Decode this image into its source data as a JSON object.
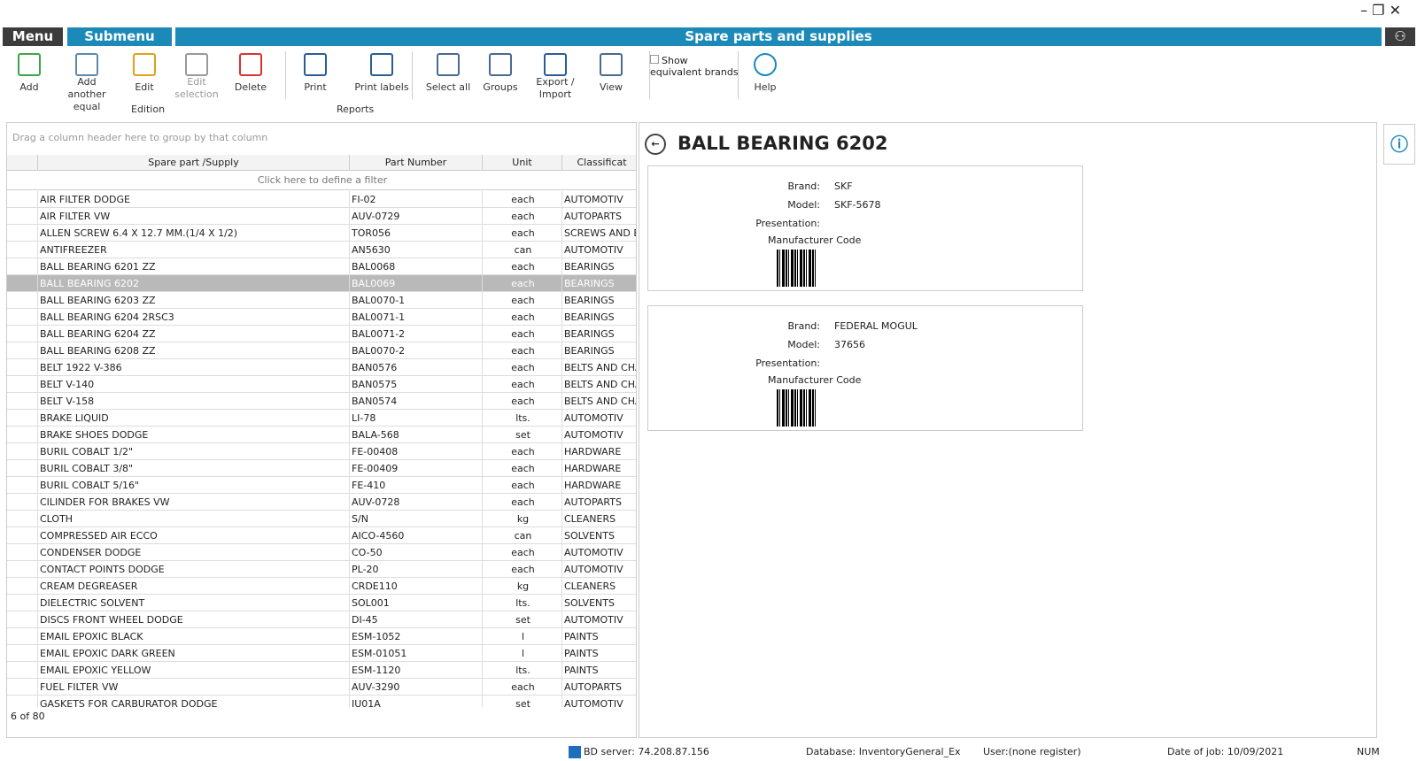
{
  "window": {
    "menu": "Menu",
    "submenu": "Submenu",
    "title": "Spare parts and supplies"
  },
  "toolbar": {
    "buttons": [
      {
        "label": "Add"
      },
      {
        "label": "Add another equal"
      },
      {
        "label": "Edit"
      },
      {
        "label": "Edit selection"
      },
      {
        "label": "Delete"
      },
      {
        "label": "Print"
      },
      {
        "label": "Print labels"
      },
      {
        "label": "Select all"
      },
      {
        "label": "Groups"
      },
      {
        "label": "Export / Import"
      },
      {
        "label": "View"
      },
      {
        "label": "Help"
      }
    ],
    "groups": [
      "Edition",
      "Reports"
    ],
    "checkbox": "Show equivalent brands"
  },
  "grid": {
    "group_hint": "Drag a column header here to group by that column",
    "columns": [
      "Spare part /Supply",
      "Part Number",
      "Unit",
      "Classificat"
    ],
    "filter_hint": "Click here to define a filter",
    "selected_row": 5,
    "rows": [
      [
        "AIR FILTER DODGE",
        "FI-02",
        "each",
        "AUTOMOTIV"
      ],
      [
        "AIR FILTER VW",
        "AUV-0729",
        "each",
        "AUTOPARTS"
      ],
      [
        "ALLEN SCREW 6.4 X 12.7 MM.(1/4 X 1/2)",
        "TOR056",
        "each",
        "SCREWS AND BO"
      ],
      [
        "ANTIFREEZER",
        "AN5630",
        "can",
        "AUTOMOTIV"
      ],
      [
        "BALL BEARING 6201 ZZ",
        "BAL0068",
        "each",
        "BEARINGS"
      ],
      [
        "BALL BEARING 6202",
        "BAL0069",
        "each",
        "BEARINGS"
      ],
      [
        "BALL BEARING 6203 ZZ",
        "BAL0070-1",
        "each",
        "BEARINGS"
      ],
      [
        "BALL BEARING 6204 2RSC3",
        "BAL0071-1",
        "each",
        "BEARINGS"
      ],
      [
        "BALL BEARING 6204 ZZ",
        "BAL0071-2",
        "each",
        "BEARINGS"
      ],
      [
        "BALL BEARING 6208 ZZ",
        "BAL0070-2",
        "each",
        "BEARINGS"
      ],
      [
        "BELT 1922 V-386",
        "BAN0576",
        "each",
        "BELTS AND CHAIN"
      ],
      [
        "BELT V-140",
        "BAN0575",
        "each",
        "BELTS AND CHAIN"
      ],
      [
        "BELT V-158",
        "BAN0574",
        "each",
        "BELTS AND CHAIN"
      ],
      [
        "BRAKE LIQUID",
        "LI-78",
        "lts.",
        "AUTOMOTIV"
      ],
      [
        "BRAKE SHOES DODGE",
        "BALA-568",
        "set",
        "AUTOMOTIV"
      ],
      [
        "BURIL COBALT 1/2\"",
        "FE-00408",
        "each",
        "HARDWARE"
      ],
      [
        "BURIL COBALT 3/8\"",
        "FE-00409",
        "each",
        "HARDWARE"
      ],
      [
        "BURIL COBALT 5/16\"",
        "FE-410",
        "each",
        "HARDWARE"
      ],
      [
        "CILINDER FOR BRAKES VW",
        "AUV-0728",
        "each",
        "AUTOPARTS"
      ],
      [
        "CLOTH",
        "S/N",
        "kg",
        "CLEANERS"
      ],
      [
        "COMPRESSED AIR ECCO",
        "AICO-4560",
        "can",
        "SOLVENTS"
      ],
      [
        "CONDENSER DODGE",
        "CO-50",
        "each",
        "AUTOMOTIV"
      ],
      [
        "CONTACT POINTS DODGE",
        "PL-20",
        "each",
        "AUTOMOTIV"
      ],
      [
        "CREAM DEGREASER",
        "CRDE110",
        "kg",
        "CLEANERS"
      ],
      [
        "DIELECTRIC SOLVENT",
        "SOL001",
        "lts.",
        "SOLVENTS"
      ],
      [
        "DISCS FRONT WHEEL DODGE",
        "DI-45",
        "set",
        "AUTOMOTIV"
      ],
      [
        "EMAIL EPOXIC BLACK",
        "ESM-1052",
        "l",
        "PAINTS"
      ],
      [
        "EMAIL EPOXIC DARK GREEN",
        "ESM-01051",
        "l",
        "PAINTS"
      ],
      [
        "EMAIL EPOXIC YELLOW",
        "ESM-1120",
        "lts.",
        "PAINTS"
      ],
      [
        "FUEL FILTER VW",
        "AUV-3290",
        "each",
        "AUTOPARTS"
      ],
      [
        "GASKETS FOR CARBURATOR DODGE",
        "JU01A",
        "set",
        "AUTOMOTIV"
      ]
    ],
    "footer": "6 of 80"
  },
  "detail": {
    "title": "BALL BEARING 6202",
    "labels": {
      "brand": "Brand:",
      "model": "Model:",
      "presentation": "Presentation:",
      "code": "Manufacturer Code"
    },
    "cards": [
      {
        "brand": "SKF",
        "model": "SKF-5678"
      },
      {
        "brand": "FEDERAL MOGUL",
        "model": "37656"
      }
    ]
  },
  "status": {
    "server": "BD server: 74.208.87.156",
    "database": "Database: InventoryGeneral_Exa...",
    "user": "User:(none register)",
    "date": "Date of job: 10/09/2021",
    "num": "NUM"
  }
}
